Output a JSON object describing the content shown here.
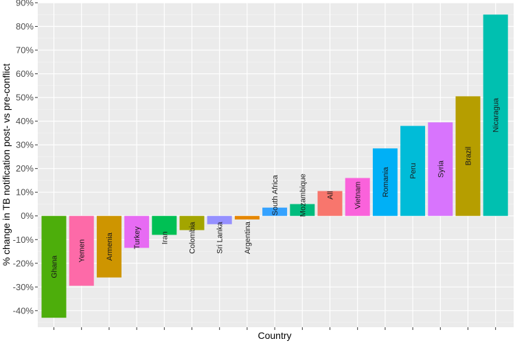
{
  "chart_data": {
    "type": "bar",
    "xlabel": "Country",
    "ylabel": "% change in TB notification post- vs pre-conflict",
    "ylim": [
      -47,
      90
    ],
    "yticks": [
      "-40%",
      "-30%",
      "-20%",
      "-10%",
      "0%",
      "10%",
      "20%",
      "30%",
      "40%",
      "50%",
      "60%",
      "70%",
      "80%",
      "90%"
    ],
    "grid": true,
    "legend": "none",
    "categories": [
      "Ghana",
      "Yemen",
      "Armenia",
      "Turkey",
      "Iran",
      "Colombia",
      "Sri Lanka",
      "Argentina",
      "South Africa",
      "Mozambique",
      "All",
      "Vietnam",
      "Romania",
      "Peru",
      "Syria",
      "Brazil",
      "Nicaragua"
    ],
    "values": [
      -43,
      -29.5,
      -26,
      -13.5,
      -8,
      -6,
      -3.5,
      -1.5,
      3.5,
      5,
      10.5,
      16,
      28.5,
      38,
      39.5,
      50.5,
      85
    ],
    "colors": [
      "#4dae0b",
      "#fd6aa8",
      "#ce9500",
      "#e76bf3",
      "#00c054",
      "#a3a500",
      "#9590ff",
      "#e58700",
      "#35a2ff",
      "#00bc7d",
      "#f8766d",
      "#fa62db",
      "#00b0f6",
      "#00bcd8",
      "#d874fd",
      "#b69e00",
      "#00c0b0"
    ]
  }
}
